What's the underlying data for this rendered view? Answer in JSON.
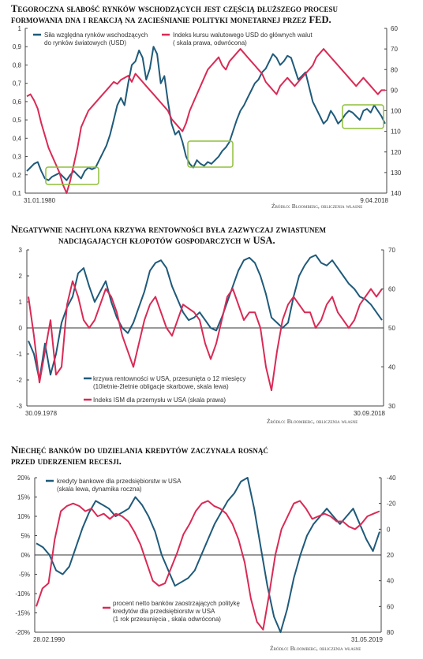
{
  "colors": {
    "blue": "#1f5a7a",
    "red": "#d92a55",
    "green": "#8fbf3a",
    "axis": "#444444"
  },
  "charts": [
    {
      "title_line1": "Tegoroczna słabość rynków wschodzących jest częścią dłuższego procesu",
      "title_line2": "formowania dna i reakcją na zacieśnianie polityki monetarnej przez FED.",
      "source": "Źródło: Bloomberg, obliczenia własne",
      "date_start": "31.01.1980",
      "date_end": "9.04.2018",
      "legend_blue_1": "Siła względna rynków wschodzących",
      "legend_blue_2": "do rynków światowych (USD)",
      "legend_red_1": "Indeks kursu walutowego USD do głównych walut",
      "legend_red_2": "( skala prawa, odwrócona)",
      "left_ticks": [
        "0,1",
        "0,2",
        "0,3",
        "0,4",
        "0,5",
        "0,6",
        "0,7",
        "0,8",
        "0,9",
        "1"
      ],
      "right_ticks": [
        "140",
        "130",
        "120",
        "110",
        "100",
        "90",
        "80",
        "70",
        "60"
      ]
    },
    {
      "title_line1": "Negatywnie nachylona krzywa rentowności była zazwyczaj zwiastunem",
      "title_line2": "nadciągających kłopotów gospodarczych w USA.",
      "source": "Źródło: Bloomberg, obliczenia własne",
      "date_start": "30.09.1978",
      "date_end": "30.09.2018",
      "legend_blue_1": "krzywa rentowności w USA, przesunięta o 12 miesięcy",
      "legend_blue_2": "(10letnie-2letnie obligacje skarbowe, skala lewa)",
      "legend_red_1": "Indeks ISM dla przemysłu w USA (skala prawa)",
      "left_ticks": [
        "-3",
        "-2",
        "-1",
        "0",
        "1",
        "2",
        "3"
      ],
      "right_ticks": [
        "30",
        "40",
        "50",
        "60",
        "70"
      ]
    },
    {
      "title_line1": "Niechęć banków do udzielania kredytów zaczynała rosnąć",
      "title_line2": "przed uderzeniem recesji.",
      "source": "Źródło: Bloomberg, obliczenia własne",
      "date_start": "28.02.1990",
      "date_end": "31.05.2019",
      "legend_blue_1": "kredyty bankowe dla przedsiębiorstw w USA",
      "legend_blue_2": "(skala lewa, dynamika roczna)",
      "legend_red_1": "procent netto banków zaostrzających politykę",
      "legend_red_2": "kredytów dla przedsiębiorstw w USA",
      "legend_red_3": "(1 rok przesunięcia , skala odwrócona)",
      "left_ticks": [
        "-20%",
        "-15%",
        "-10%",
        "-5%",
        "0%",
        "5%",
        "10%",
        "15%",
        "20%"
      ],
      "right_ticks": [
        "80",
        "60",
        "40",
        "20",
        "0",
        "-20",
        "-40"
      ]
    }
  ],
  "chart_data": [
    {
      "type": "line",
      "x_range": [
        "1980-01",
        "2018-04"
      ],
      "ylim_left": [
        0.1,
        1.0
      ],
      "ylim_right": [
        140,
        60
      ],
      "right_axis_inverted": true,
      "series": [
        {
          "name": "Siła względna rynków wschodzących do rynków światowych (USD)",
          "axis": "left",
          "color": "#1f5a7a",
          "values": [
            0.22,
            0.24,
            0.26,
            0.27,
            0.22,
            0.18,
            0.17,
            0.19,
            0.2,
            0.21,
            0.19,
            0.17,
            0.2,
            0.22,
            0.2,
            0.18,
            0.22,
            0.24,
            0.23,
            0.24,
            0.28,
            0.32,
            0.36,
            0.42,
            0.5,
            0.58,
            0.62,
            0.58,
            0.7,
            0.8,
            0.82,
            0.88,
            0.84,
            0.72,
            0.78,
            0.9,
            0.86,
            0.7,
            0.74,
            0.6,
            0.48,
            0.42,
            0.44,
            0.38,
            0.3,
            0.26,
            0.24,
            0.28,
            0.26,
            0.25,
            0.27,
            0.26,
            0.28,
            0.3,
            0.33,
            0.35,
            0.38,
            0.44,
            0.5,
            0.55,
            0.58,
            0.62,
            0.66,
            0.7,
            0.72,
            0.76,
            0.78,
            0.82,
            0.86,
            0.84,
            0.8,
            0.82,
            0.85,
            0.84,
            0.78,
            0.72,
            0.74,
            0.76,
            0.68,
            0.6,
            0.56,
            0.52,
            0.48,
            0.5,
            0.55,
            0.52,
            0.48,
            0.5,
            0.53,
            0.55,
            0.54,
            0.52,
            0.5,
            0.55,
            0.56,
            0.54,
            0.58,
            0.55,
            0.52,
            0.48
          ]
        },
        {
          "name": "Indeks kursu walutowego USD do głównych walut",
          "axis": "right",
          "color": "#d92a55",
          "values": [
            93,
            92,
            95,
            99,
            106,
            112,
            118,
            122,
            126,
            130,
            136,
            140,
            134,
            126,
            118,
            108,
            104,
            100,
            98,
            96,
            94,
            92,
            90,
            88,
            86,
            87,
            85,
            84,
            83,
            86,
            82,
            84,
            86,
            88,
            90,
            92,
            94,
            96,
            98,
            100,
            104,
            106,
            108,
            110,
            106,
            100,
            96,
            92,
            88,
            84,
            80,
            78,
            76,
            74,
            78,
            80,
            76,
            74,
            72,
            70,
            72,
            74,
            76,
            78,
            80,
            82,
            86,
            88,
            90,
            92,
            88,
            86,
            84,
            86,
            88,
            86,
            84,
            82,
            80,
            78,
            74,
            72,
            70,
            72,
            74,
            76,
            78,
            80,
            82,
            84,
            86,
            88,
            86,
            84,
            86,
            88,
            90,
            92,
            90,
            90
          ]
        }
      ],
      "annotation_boxes": 4
    },
    {
      "type": "line",
      "x_range": [
        "1978-09",
        "2018-09"
      ],
      "ylim_left": [
        -3,
        3
      ],
      "ylim_right": [
        30,
        70
      ],
      "series": [
        {
          "name": "krzywa rentowności w USA, przesunięta o 12 miesięcy (10letnie-2letnie obligacje skarbowe, skala lewa)",
          "axis": "left",
          "color": "#1f5a7a",
          "values": [
            -0.5,
            -1.0,
            -2.0,
            -0.6,
            -1.8,
            -1.0,
            0.2,
            0.8,
            1.2,
            2.1,
            2.3,
            1.6,
            1.0,
            1.4,
            1.8,
            1.0,
            0.4,
            0.0,
            -0.2,
            0.2,
            0.8,
            1.4,
            2.2,
            2.5,
            2.6,
            2.3,
            1.6,
            1.1,
            0.6,
            0.3,
            0.4,
            0.6,
            0.3,
            0.0,
            -0.1,
            0.4,
            1.0,
            1.6,
            2.2,
            2.6,
            2.7,
            2.5,
            2.0,
            1.3,
            0.4,
            0.2,
            0.0,
            0.2,
            1.2,
            2.0,
            2.4,
            2.7,
            2.8,
            2.5,
            2.4,
            2.6,
            2.3,
            2.0,
            1.7,
            1.5,
            1.2,
            1.1,
            0.9,
            0.6,
            0.3
          ]
        },
        {
          "name": "Indeks ISM dla przemysłu w USA (skala prawa)",
          "axis": "right",
          "color": "#d92a55",
          "values": [
            58,
            48,
            36,
            44,
            52,
            38,
            40,
            56,
            62,
            58,
            52,
            50,
            52,
            56,
            60,
            58,
            54,
            48,
            44,
            40,
            46,
            52,
            56,
            58,
            54,
            50,
            48,
            52,
            56,
            55,
            54,
            52,
            46,
            42,
            46,
            52,
            58,
            60,
            56,
            52,
            54,
            54,
            50,
            40,
            34,
            44,
            52,
            56,
            58,
            56,
            54,
            54,
            50,
            52,
            56,
            58,
            54,
            52,
            50,
            52,
            56,
            58,
            60,
            58,
            60
          ]
        }
      ]
    },
    {
      "type": "line",
      "x_range": [
        "1990-02",
        "2019-05"
      ],
      "ylim_left": [
        -0.2,
        0.2
      ],
      "ylim_right": [
        80,
        -40
      ],
      "right_axis_inverted": true,
      "series": [
        {
          "name": "kredyty bankowe dla przedsiębiorstw w USA (skala lewa, dynamika roczna)",
          "axis": "left",
          "color": "#1f5a7a",
          "values": [
            0.03,
            0.02,
            0.0,
            -0.04,
            -0.05,
            -0.03,
            0.02,
            0.07,
            0.11,
            0.14,
            0.13,
            0.12,
            0.1,
            0.11,
            0.12,
            0.15,
            0.13,
            0.1,
            0.06,
            0.0,
            -0.04,
            -0.08,
            -0.07,
            -0.06,
            -0.04,
            0.0,
            0.04,
            0.08,
            0.11,
            0.14,
            0.16,
            0.19,
            0.2,
            0.12,
            0.02,
            -0.08,
            -0.16,
            -0.2,
            -0.14,
            -0.06,
            0.0,
            0.05,
            0.08,
            0.1,
            0.12,
            0.1,
            0.08,
            0.1,
            0.12,
            0.08,
            0.04,
            0.01,
            0.06
          ]
        },
        {
          "name": "procent netto banków zaostrzających politykę kredytów dla przedsiębiorstw w USA (1 rok przesunięcia, skala odwrócona)",
          "axis": "right",
          "color": "#d92a55",
          "values": [
            60,
            46,
            42,
            8,
            -14,
            -18,
            -20,
            -18,
            -14,
            -16,
            -10,
            -12,
            -8,
            -12,
            -10,
            -6,
            2,
            12,
            26,
            40,
            44,
            42,
            30,
            18,
            4,
            -4,
            -14,
            -20,
            -22,
            -18,
            -16,
            -12,
            -4,
            8,
            26,
            54,
            72,
            78,
            50,
            20,
            0,
            -10,
            -20,
            -22,
            -16,
            -8,
            -10,
            -12,
            -10,
            -6,
            -6,
            -2,
            0,
            -4,
            -10,
            -12,
            -14
          ]
        }
      ]
    }
  ]
}
